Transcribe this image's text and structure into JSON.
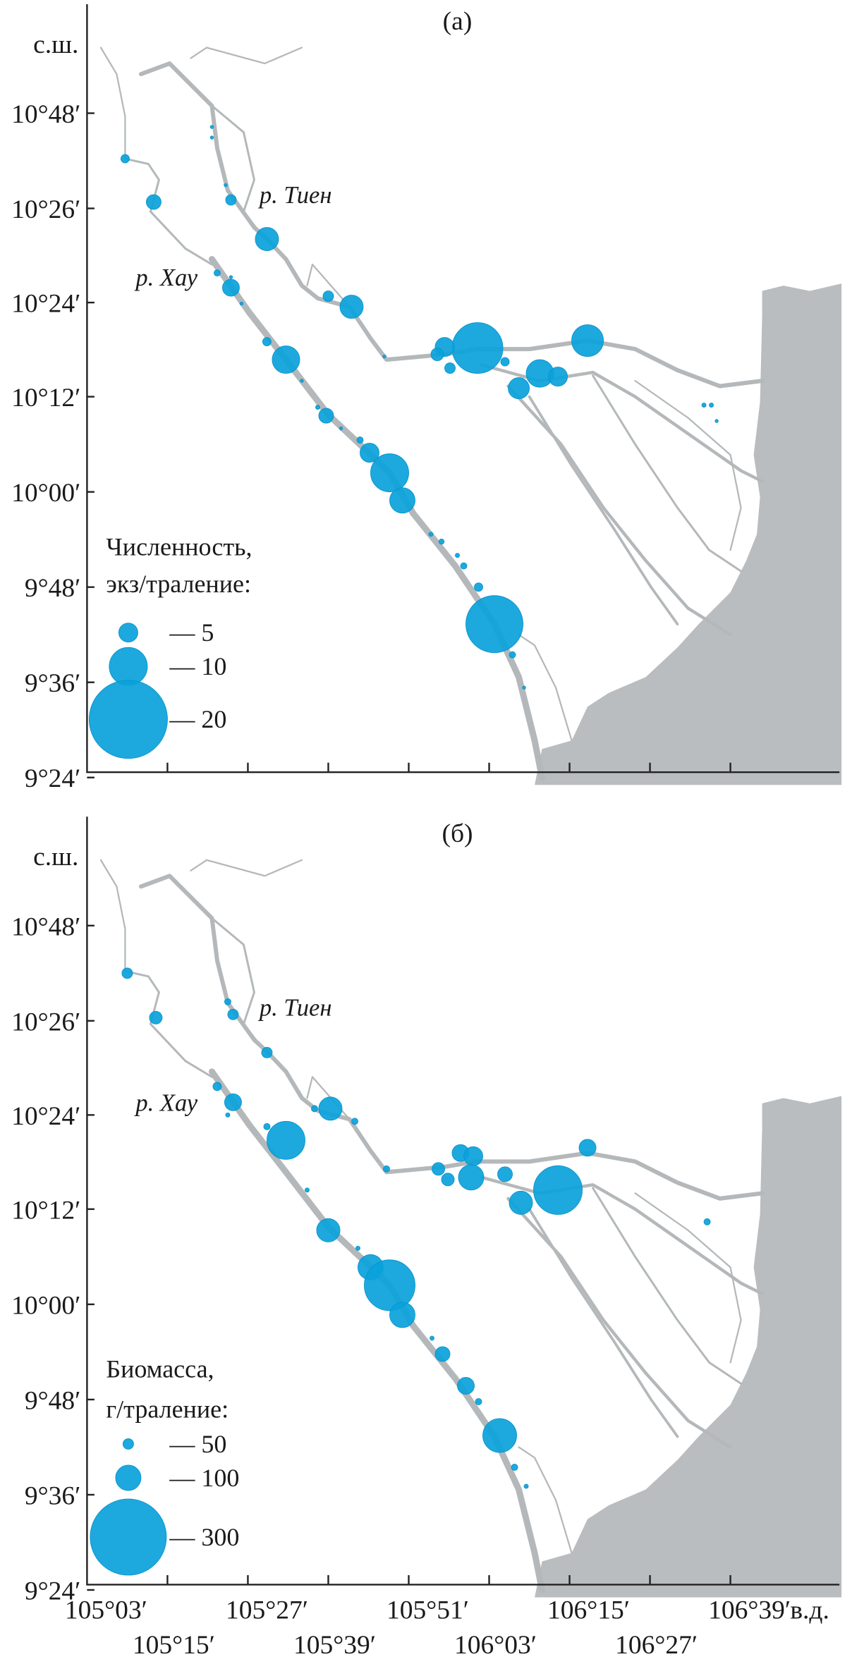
{
  "panels": [
    {
      "label": "(а)",
      "river_labels": [
        "р. Тиен",
        "р. Хау"
      ],
      "lat_unit": "с.ш.",
      "lat_ticks": [
        "10°48′",
        "10°26′",
        "10°24′",
        "10°12′",
        "10°00′",
        "9°48′",
        "9°36′",
        "9°24′"
      ],
      "legend": {
        "title_line1": "Численность,",
        "title_line2": "экз/траление:",
        "entries": [
          "— 5",
          "— 10",
          "— 20"
        ],
        "values": [
          5,
          10,
          20
        ]
      }
    },
    {
      "label": "(б)",
      "river_labels": [
        "р. Тиен",
        "р. Хау"
      ],
      "lat_unit": "с.ш.",
      "lat_ticks": [
        "10°48′",
        "10°26′",
        "10°24′",
        "10°12′",
        "10°00′",
        "9°48′",
        "9°36′",
        "9°24′"
      ],
      "legend": {
        "title_line1": "Биомасса,",
        "title_line2": "г/траление:",
        "entries": [
          "— 50",
          "— 100",
          "— 300"
        ],
        "values": [
          50,
          100,
          300
        ]
      }
    }
  ],
  "lon_ticks_row1": [
    "105°03′",
    "105°27′",
    "105°51′",
    "106°15′",
    "106°39′"
  ],
  "lon_ticks_row2": [
    "105°15′",
    "105°39′",
    "106°03′",
    "106°27′"
  ],
  "lon_unit": "в.д.",
  "colors": {
    "bubble": "#0aa2db",
    "sea": "#b9bdbf",
    "river": "#b4b8ba"
  }
}
